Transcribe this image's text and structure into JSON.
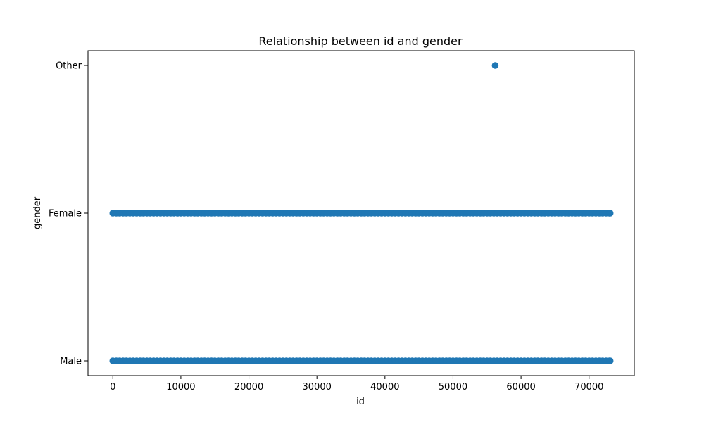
{
  "chart_data": {
    "type": "scatter",
    "title": "Relationship between id and gender",
    "xlabel": "id",
    "ylabel": "gender",
    "xlim": [
      -3650,
      76650
    ],
    "x_ticks": [
      0,
      10000,
      20000,
      30000,
      40000,
      50000,
      60000,
      70000
    ],
    "x_tick_labels": [
      "0",
      "10000",
      "20000",
      "30000",
      "40000",
      "50000",
      "60000",
      "70000"
    ],
    "y_categories": [
      "Male",
      "Female",
      "Other"
    ],
    "grid": false,
    "legend": "none",
    "marker_color": "#1f77b4",
    "series": [
      {
        "x_range": [
          0,
          73100
        ],
        "category": "Male",
        "note_density": "continuous"
      },
      {
        "x_range": [
          0,
          73100
        ],
        "category": "Female",
        "note_density": "continuous"
      },
      {
        "points": [
          {
            "x": 56200,
            "y": "Other"
          }
        ]
      }
    ]
  }
}
